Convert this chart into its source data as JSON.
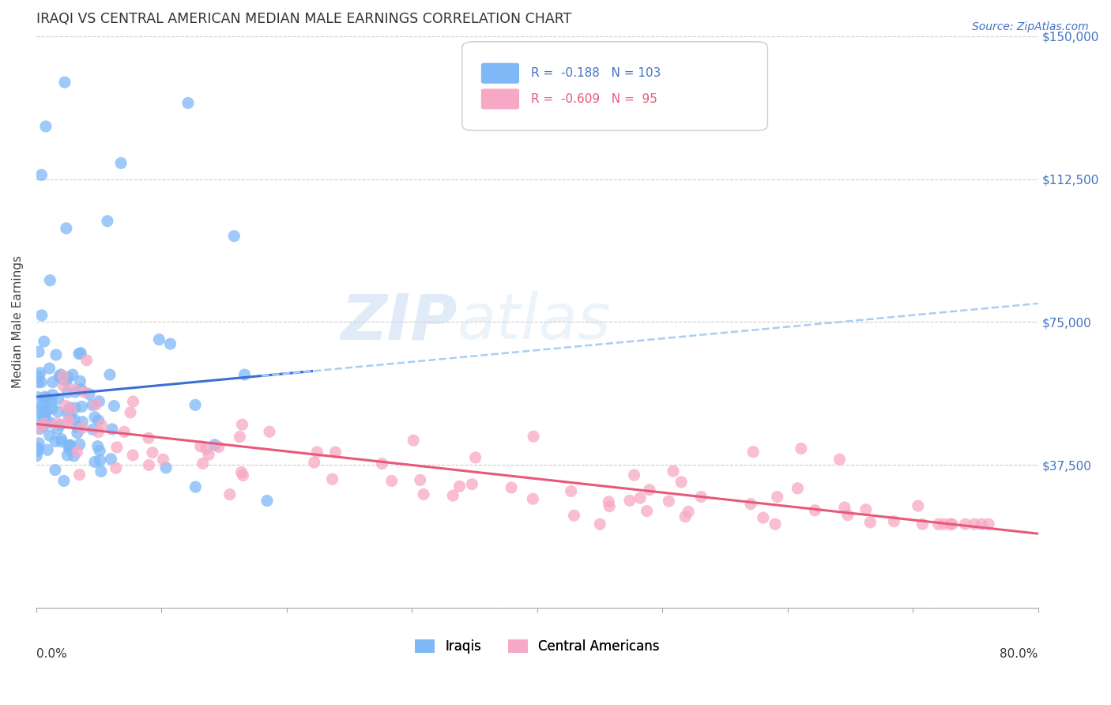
{
  "title": "IRAQI VS CENTRAL AMERICAN MEDIAN MALE EARNINGS CORRELATION CHART",
  "source": "Source: ZipAtlas.com",
  "ylabel": "Median Male Earnings",
  "y_ticks": [
    0,
    37500,
    75000,
    112500,
    150000
  ],
  "y_tick_labels": [
    "",
    "$37,500",
    "$75,000",
    "$112,500",
    "$150,000"
  ],
  "xlim": [
    0.0,
    0.8
  ],
  "ylim": [
    0,
    150000
  ],
  "watermark_zip": "ZIP",
  "watermark_atlas": "atlas",
  "iraqis_color": "#7eb8f7",
  "central_color": "#f7a8c4",
  "iraqis_line_color": "#3b6fd4",
  "central_line_color": "#e8587a",
  "iraqis_dash_color": "#a8cef5",
  "iraqis_R": -0.188,
  "iraqis_N": 103,
  "central_R": -0.609,
  "central_N": 95,
  "background": "#ffffff",
  "grid_color": "#cccccc"
}
